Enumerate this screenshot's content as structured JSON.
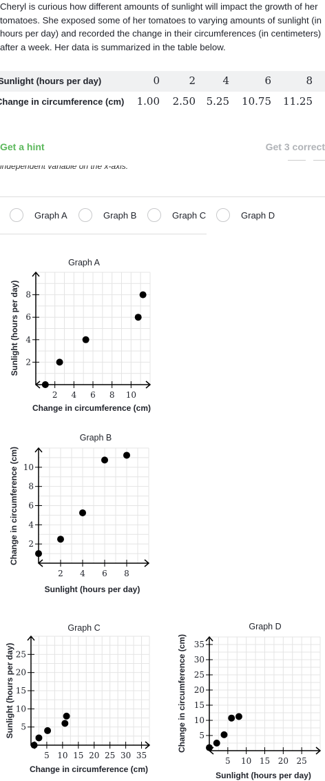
{
  "question": {
    "intro": "Cheryl is curious how different amounts of sunlight will impact the growth of her tomatoes. She exposed some of her tomatoes to varying amounts of sunlight (in hours per day) and recorded the change in their circumferences (in centimeters) after a week. Her data is summarized in the table below.",
    "clipped_text": "independent variable on the x-axis."
  },
  "table": {
    "row1_label": "Sunlight (hours per day)",
    "row1_values": [
      "0",
      "2",
      "4",
      "6",
      "8"
    ],
    "row2_label": "Change in circumference (cm)",
    "row2_values": [
      "1.00",
      "2.50",
      "5.25",
      "10.75",
      "11.25"
    ]
  },
  "hint_label": "Get a hint",
  "progress_label": "Get 3 correct",
  "choices": [
    "Graph A",
    "Graph B",
    "Graph C",
    "Graph D"
  ],
  "chart_data": [
    {
      "type": "scatter",
      "title": "Graph A",
      "xlabel": "Change in circumference (cm)",
      "ylabel": "Sunlight (hours per day)",
      "xlim": [
        0,
        12
      ],
      "ylim": [
        0,
        10
      ],
      "xticks": [
        2,
        4,
        6,
        8,
        10
      ],
      "yticks": [
        2,
        4,
        6,
        8
      ],
      "grid": true,
      "points": [
        [
          1.0,
          0
        ],
        [
          2.5,
          2
        ],
        [
          5.25,
          4
        ],
        [
          10.75,
          6
        ],
        [
          11.25,
          8
        ]
      ]
    },
    {
      "type": "scatter",
      "title": "Graph B",
      "xlabel": "Sunlight (hours per day)",
      "ylabel": "Change in circumference (cm)",
      "xlim": [
        0,
        10
      ],
      "ylim": [
        0,
        12
      ],
      "xticks": [
        2,
        4,
        6,
        8
      ],
      "yticks": [
        2,
        4,
        6,
        8,
        10
      ],
      "grid": true,
      "points": [
        [
          0,
          1.0
        ],
        [
          2,
          2.5
        ],
        [
          4,
          5.25
        ],
        [
          6,
          10.75
        ],
        [
          8,
          11.25
        ]
      ]
    },
    {
      "type": "scatter",
      "title": "Graph C",
      "xlabel": "Change in circumference (cm)",
      "ylabel": "Sunlight (hours per day)",
      "xlim": [
        0,
        37.5
      ],
      "ylim": [
        0,
        30
      ],
      "xticks": [
        5,
        10,
        15,
        20,
        25,
        30,
        35
      ],
      "yticks": [
        5,
        10,
        15,
        20,
        25
      ],
      "grid": true,
      "points": [
        [
          1.0,
          0
        ],
        [
          2.5,
          2
        ],
        [
          5.25,
          4
        ],
        [
          10.75,
          6
        ],
        [
          11.25,
          8
        ]
      ]
    },
    {
      "type": "scatter",
      "title": "Graph D",
      "xlabel": "Sunlight (hours per day)",
      "ylabel": "Change in circumference (cm)",
      "xlim": [
        0,
        30
      ],
      "ylim": [
        0,
        37.5
      ],
      "xticks": [
        5,
        10,
        15,
        20,
        25
      ],
      "yticks": [
        5,
        10,
        15,
        20,
        25,
        30,
        35
      ],
      "grid": true,
      "points": [
        [
          0,
          1.0
        ],
        [
          2,
          2.5
        ],
        [
          4,
          5.25
        ],
        [
          6,
          10.75
        ],
        [
          8,
          11.25
        ]
      ]
    }
  ]
}
